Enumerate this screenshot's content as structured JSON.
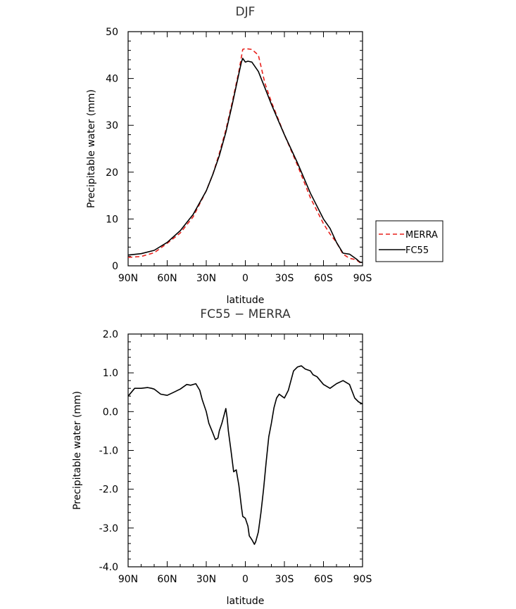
{
  "chart_data": [
    {
      "type": "line",
      "title": "DJF",
      "xlabel": "latitude",
      "ylabel": "Precipitable water (mm)",
      "xlim": [
        -90,
        90
      ],
      "ylim": [
        0,
        50
      ],
      "xtick_values": [
        -90,
        -60,
        -30,
        0,
        30,
        60,
        90
      ],
      "xticks": [
        "90N",
        "60N",
        "30N",
        "0",
        "30S",
        "60S",
        "90S"
      ],
      "ytick_values": [
        0,
        10,
        20,
        30,
        40,
        50
      ],
      "yticks": [
        "0",
        "10",
        "20",
        "30",
        "40",
        "50"
      ],
      "legend_position": "right",
      "series": [
        {
          "name": "MERRA",
          "color": "#e8211c",
          "dash": "dashed",
          "x": [
            -90,
            -80,
            -70,
            -60,
            -50,
            -40,
            -30,
            -25,
            -20,
            -15,
            -10,
            -5,
            -2,
            0,
            5,
            10,
            15,
            20,
            25,
            30,
            40,
            50,
            60,
            65,
            70,
            75,
            80,
            85,
            88,
            90
          ],
          "y": [
            1.8,
            2.0,
            2.8,
            4.8,
            7.0,
            10.5,
            16.0,
            19.5,
            24.0,
            29.0,
            35.0,
            41.5,
            46.2,
            46.4,
            46.2,
            45.0,
            39.0,
            35.0,
            31.5,
            28.0,
            21.5,
            14.5,
            9.0,
            6.8,
            5.0,
            2.5,
            1.6,
            1.3,
            0.7,
            0.6
          ]
        },
        {
          "name": "FC55",
          "color": "#000000",
          "dash": "solid",
          "x": [
            -90,
            -80,
            -70,
            -60,
            -50,
            -40,
            -30,
            -25,
            -20,
            -15,
            -10,
            -5,
            -3,
            -2,
            0,
            2,
            5,
            10,
            15,
            20,
            25,
            30,
            40,
            50,
            60,
            65,
            70,
            75,
            80,
            85,
            88,
            90
          ],
          "y": [
            2.3,
            2.6,
            3.3,
            5.0,
            7.5,
            11.0,
            16.0,
            19.5,
            23.5,
            28.5,
            34.5,
            41.0,
            43.5,
            44.3,
            43.5,
            43.7,
            43.5,
            41.5,
            38.0,
            34.5,
            31.2,
            28.0,
            22.0,
            15.5,
            10.0,
            8.0,
            5.0,
            2.7,
            2.5,
            1.5,
            0.8,
            0.7
          ]
        }
      ]
    },
    {
      "type": "line",
      "title": "FC55 − MERRA",
      "xlabel": "latitude",
      "ylabel": "Precipitable water (mm)",
      "xlim": [
        -90,
        90
      ],
      "ylim": [
        -4.0,
        2.0
      ],
      "xtick_values": [
        -90,
        -60,
        -30,
        0,
        30,
        60,
        90
      ],
      "xticks": [
        "90N",
        "60N",
        "30N",
        "0",
        "30S",
        "60S",
        "90S"
      ],
      "ytick_values": [
        -4,
        -3,
        -2,
        -1,
        0,
        1,
        2
      ],
      "yticks": [
        "-4.0",
        "-3.0",
        "-2.0",
        "-1.0",
        "0.0",
        "1.0",
        "2.0"
      ],
      "series": [
        {
          "name": "",
          "color": "#000000",
          "dash": "solid",
          "x": [
            -90,
            -85,
            -80,
            -75,
            -72,
            -70,
            -65,
            -60,
            -55,
            -50,
            -45,
            -42,
            -38,
            -35,
            -33,
            -30,
            -28,
            -25,
            -23,
            -21,
            -20,
            -18,
            -15,
            -14,
            -13,
            -11,
            -9,
            -7,
            -5,
            -3,
            -2,
            0,
            2,
            3,
            5,
            7,
            8,
            10,
            12,
            14,
            16,
            18,
            20,
            22,
            24,
            26,
            28,
            30,
            33,
            35,
            37,
            40,
            43,
            46,
            50,
            52,
            55,
            60,
            65,
            70,
            75,
            80,
            84,
            87,
            90
          ],
          "y": [
            0.4,
            0.6,
            0.6,
            0.62,
            0.6,
            0.58,
            0.45,
            0.42,
            0.5,
            0.58,
            0.7,
            0.68,
            0.72,
            0.55,
            0.3,
            0.0,
            -0.3,
            -0.55,
            -0.72,
            -0.68,
            -0.5,
            -0.3,
            0.08,
            -0.15,
            -0.5,
            -1.0,
            -1.55,
            -1.5,
            -1.9,
            -2.45,
            -2.7,
            -2.75,
            -2.95,
            -3.2,
            -3.3,
            -3.42,
            -3.35,
            -3.1,
            -2.6,
            -2.0,
            -1.3,
            -0.65,
            -0.3,
            0.1,
            0.35,
            0.45,
            0.4,
            0.35,
            0.55,
            0.8,
            1.05,
            1.15,
            1.18,
            1.1,
            1.05,
            0.95,
            0.9,
            0.7,
            0.6,
            0.72,
            0.8,
            0.7,
            0.35,
            0.25,
            0.2
          ]
        }
      ]
    }
  ]
}
